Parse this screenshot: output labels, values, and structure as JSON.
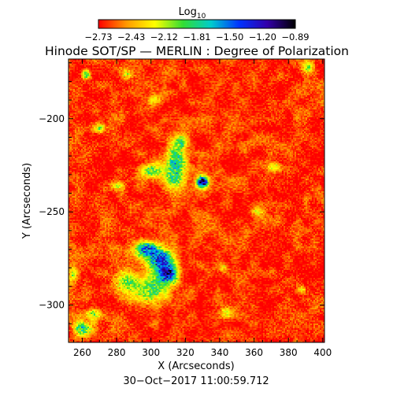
{
  "chart_data": {
    "type": "heatmap",
    "title": "Hinode SOT/SP — MERLIN : Degree of Polarization",
    "xlabel": "X (Arcseconds)",
    "ylabel": "Y (Arcseconds)",
    "xlim": [
      252,
      401
    ],
    "ylim": [
      -320,
      -168
    ],
    "xticks": [
      260,
      280,
      300,
      320,
      340,
      360,
      380,
      400
    ],
    "yticks": [
      -200,
      -250,
      -300
    ],
    "colorbar": {
      "label": "Log",
      "label_subscript": "10",
      "range": [
        -2.73,
        -0.89
      ],
      "tick_labels": [
        "−2.73",
        "−2.43",
        "−2.12",
        "−1.81",
        "−1.50",
        "−1.20",
        "−0.89"
      ],
      "colors": [
        "#ff0000",
        "#ff9900",
        "#ffff00",
        "#33dd33",
        "#00cccc",
        "#0033ff",
        "#3300aa",
        "#000000"
      ]
    },
    "background_level": -2.65,
    "regions": [
      {
        "x": 305,
        "y": -276,
        "rx": 10,
        "ry": 8,
        "peak": -1.3
      },
      {
        "x": 297,
        "y": -270,
        "rx": 9,
        "ry": 5,
        "peak": -1.5
      },
      {
        "x": 310,
        "y": -284,
        "rx": 7,
        "ry": 6,
        "peak": -1.4
      },
      {
        "x": 300,
        "y": -292,
        "rx": 12,
        "ry": 9,
        "peak": -1.9
      },
      {
        "x": 285,
        "y": -288,
        "rx": 10,
        "ry": 8,
        "peak": -2.0
      },
      {
        "x": 330,
        "y": -234,
        "rx": 4,
        "ry": 4,
        "peak": -0.9
      },
      {
        "x": 314,
        "y": -226,
        "rx": 8,
        "ry": 16,
        "peak": -1.7
      },
      {
        "x": 300,
        "y": -228,
        "rx": 9,
        "ry": 5,
        "peak": -2.0
      },
      {
        "x": 318,
        "y": -212,
        "rx": 4,
        "ry": 4,
        "peak": -2.0
      },
      {
        "x": 260,
        "y": -313,
        "rx": 7,
        "ry": 5,
        "peak": -1.8
      },
      {
        "x": 266,
        "y": -305,
        "rx": 6,
        "ry": 4,
        "peak": -2.1
      },
      {
        "x": 254,
        "y": -284,
        "rx": 3,
        "ry": 6,
        "peak": -2.1
      },
      {
        "x": 262,
        "y": -176,
        "rx": 3,
        "ry": 3,
        "peak": -1.8
      },
      {
        "x": 286,
        "y": -176,
        "rx": 4,
        "ry": 3,
        "peak": -2.1
      },
      {
        "x": 302,
        "y": -190,
        "rx": 5,
        "ry": 4,
        "peak": -2.1
      },
      {
        "x": 270,
        "y": -205,
        "rx": 4,
        "ry": 3,
        "peak": -2.1
      },
      {
        "x": 372,
        "y": -226,
        "rx": 5,
        "ry": 3,
        "peak": -2.1
      },
      {
        "x": 392,
        "y": -172,
        "rx": 4,
        "ry": 4,
        "peak": -2.1
      },
      {
        "x": 362,
        "y": -250,
        "rx": 4,
        "ry": 3,
        "peak": -2.2
      },
      {
        "x": 342,
        "y": -280,
        "rx": 4,
        "ry": 3,
        "peak": -2.2
      },
      {
        "x": 344,
        "y": -304,
        "rx": 4,
        "ry": 4,
        "peak": -2.1
      },
      {
        "x": 388,
        "y": -292,
        "rx": 4,
        "ry": 3,
        "peak": -2.2
      },
      {
        "x": 280,
        "y": -236,
        "rx": 5,
        "ry": 3,
        "peak": -2.2
      }
    ],
    "timestamp": "30−Oct−2017 11:00:59.712"
  }
}
